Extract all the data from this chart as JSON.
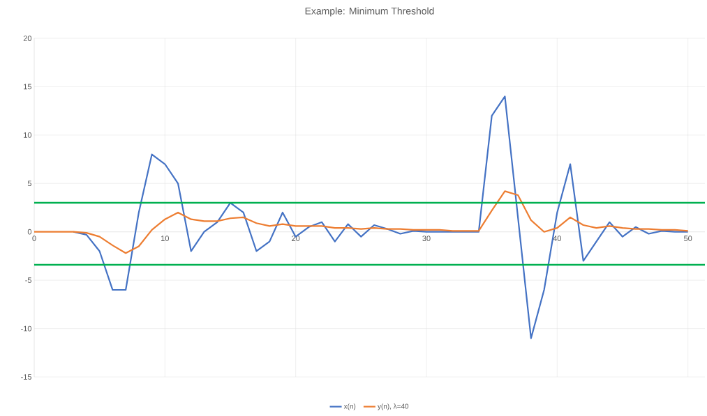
{
  "chart_data": {
    "type": "line",
    "title": "Example: Minimum Threshold",
    "x": [
      0,
      1,
      2,
      3,
      4,
      5,
      6,
      7,
      8,
      9,
      10,
      11,
      12,
      13,
      14,
      15,
      16,
      17,
      18,
      19,
      20,
      21,
      22,
      23,
      24,
      25,
      26,
      27,
      28,
      29,
      30,
      31,
      32,
      33,
      34,
      35,
      36,
      37,
      38,
      39,
      40,
      41,
      42,
      43,
      44,
      45,
      46,
      47,
      48,
      49,
      50
    ],
    "series": [
      {
        "name": "x(n)",
        "color": "#4472c4",
        "values": [
          null,
          null,
          null,
          0,
          -0.3,
          -2,
          -6,
          -6,
          2,
          8,
          7,
          5,
          -2,
          0,
          1,
          3,
          2,
          -2,
          -1,
          2,
          -0.5,
          0.5,
          1,
          -1,
          0.8,
          -0.5,
          0.7,
          0.3,
          -0.2,
          0.1,
          0,
          0,
          0,
          0,
          0,
          12,
          14,
          1.5,
          -11,
          -6,
          2,
          7,
          -3,
          -1,
          1,
          -0.5,
          0.5,
          -0.2,
          0.1,
          0,
          0
        ]
      },
      {
        "name": "y(n), λ=40",
        "color": "#ed7d31",
        "values": [
          0,
          0,
          0,
          0,
          -0.1,
          -0.5,
          -1.4,
          -2.2,
          -1.5,
          0.2,
          1.3,
          2,
          1.3,
          1.1,
          1.1,
          1.4,
          1.5,
          0.9,
          0.6,
          0.8,
          0.6,
          0.6,
          0.6,
          0.4,
          0.4,
          0.3,
          0.4,
          0.3,
          0.3,
          0.2,
          0.2,
          0.2,
          0.1,
          0.1,
          0.1,
          2.2,
          4.2,
          3.8,
          1.2,
          0,
          0.4,
          1.5,
          0.7,
          0.4,
          0.6,
          0.4,
          0.3,
          0.3,
          0.2,
          0.2,
          0.1
        ]
      }
    ],
    "ref_lines": [
      {
        "axis": "y",
        "value": 3,
        "color": "#00b050"
      },
      {
        "axis": "y",
        "value": -3.4,
        "color": "#00b050"
      }
    ],
    "xlim": [
      0,
      51.3
    ],
    "xticks": [
      0,
      10,
      20,
      30,
      40,
      50
    ],
    "ylim": [
      -15,
      20
    ],
    "yticks": [
      -15,
      -10,
      -5,
      0,
      5,
      10,
      15,
      20
    ],
    "grid": true,
    "legend": "bottom",
    "marker": "none",
    "line_style": "solid"
  }
}
